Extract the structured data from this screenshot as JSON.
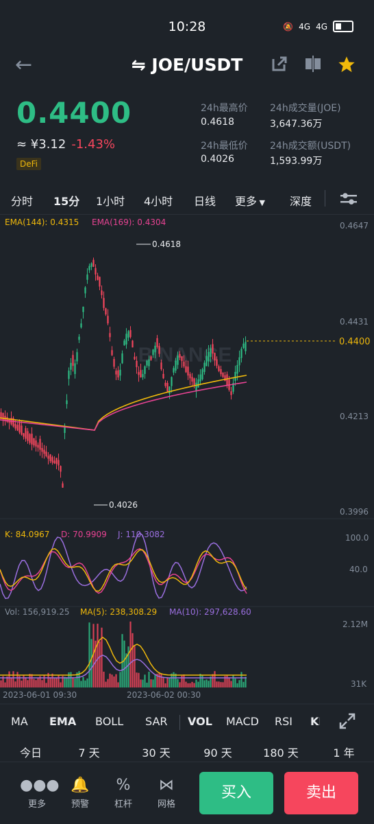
{
  "status": {
    "time": "10:28",
    "net1": "4G",
    "net2": "4G"
  },
  "header": {
    "pair": "JOE/USDT",
    "pair_icon": "swap-arrows-icon"
  },
  "ticker": {
    "price": "0.4400",
    "cny": "≈ ¥3.12",
    "change": "-1.43%",
    "tag": "DeFi",
    "high_label": "24h最高价",
    "high": "0.4618",
    "low_label": "24h最低价",
    "low": "0.4026",
    "vol_label": "24h成交量(JOE)",
    "vol": "3,647.36万",
    "amt_label": "24h成交额(USDT)",
    "amt": "1,593.99万"
  },
  "timeframes": [
    "分时",
    "15分",
    "1小时",
    "4小时",
    "日线",
    "更多",
    "深度"
  ],
  "active_timeframe": "15分",
  "main_chart": {
    "ema144": "EMA(144): 0.4315",
    "ema169": "EMA(169): 0.4304",
    "y_ticks": [
      "0.4647",
      "0.4431",
      "0.4213",
      "0.3996"
    ],
    "last_price": "0.4400",
    "high_mark": "0.4618",
    "low_mark": "0.4026",
    "watermark": "BINANCE"
  },
  "kdj": {
    "k": "K: 84.0967",
    "d": "D: 70.9909",
    "j": "J: 110.3082",
    "ticks": [
      "100.0",
      "40.0"
    ]
  },
  "volume": {
    "vol": "Vol: 156,919.25",
    "ma5": "MA(5): 238,308.29",
    "ma10": "MA(10): 297,628.60",
    "ticks": [
      "2.12M",
      "31K"
    ]
  },
  "x_labels": [
    "2023-06-01 09:30",
    "2023-06-02 00:30"
  ],
  "indicators": [
    "MA",
    "EMA",
    "BOLL",
    "SAR",
    "VOL",
    "MACD",
    "RSI",
    "KI"
  ],
  "active_main_indicator": "EMA",
  "active_sub_indicator": "VOL",
  "perf_labels": [
    "今日",
    "7 天",
    "30 天",
    "90 天",
    "180 天",
    "1 年"
  ],
  "nav": [
    {
      "label": "更多",
      "icon": "more-dots-icon"
    },
    {
      "label": "预警",
      "icon": "bell-icon"
    },
    {
      "label": "杠杆",
      "icon": "percent-icon"
    },
    {
      "label": "网格",
      "icon": "grid-icon"
    }
  ],
  "buy_label": "买入",
  "sell_label": "卖出",
  "colors": {
    "up": "#2ebd85",
    "down": "#f6465d",
    "ema144": "#f0b90b",
    "ema169": "#e84393",
    "k": "#f0b90b",
    "d": "#e84393",
    "j": "#9b6fe0"
  }
}
